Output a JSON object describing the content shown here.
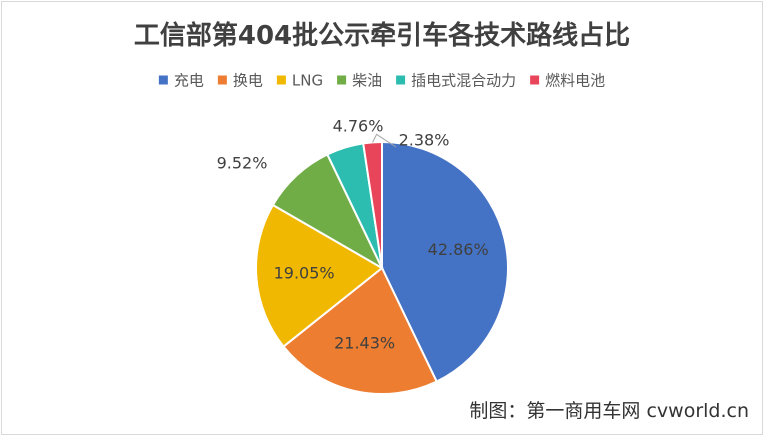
{
  "chart_data": {
    "type": "pie",
    "title": "工信部第404批公示牵引车各技术路线占比",
    "categories": [
      "充电",
      "换电",
      "LNG",
      "柴油",
      "插电式混合动力",
      "燃料电池"
    ],
    "values": [
      42.86,
      21.43,
      19.05,
      9.52,
      4.76,
      2.38
    ],
    "labels": [
      "42.86%",
      "21.43%",
      "19.05%",
      "9.52%",
      "4.76%",
      "2.38%"
    ],
    "colors": [
      "#4472c4",
      "#ed7d31",
      "#f0b800",
      "#70ad47",
      "#2dbdb0",
      "#e8455a"
    ],
    "legend_position": "top",
    "start_angle_deg": 0,
    "direction": "clockwise"
  },
  "credit": "制图：第一商用车网 cvworld.cn"
}
